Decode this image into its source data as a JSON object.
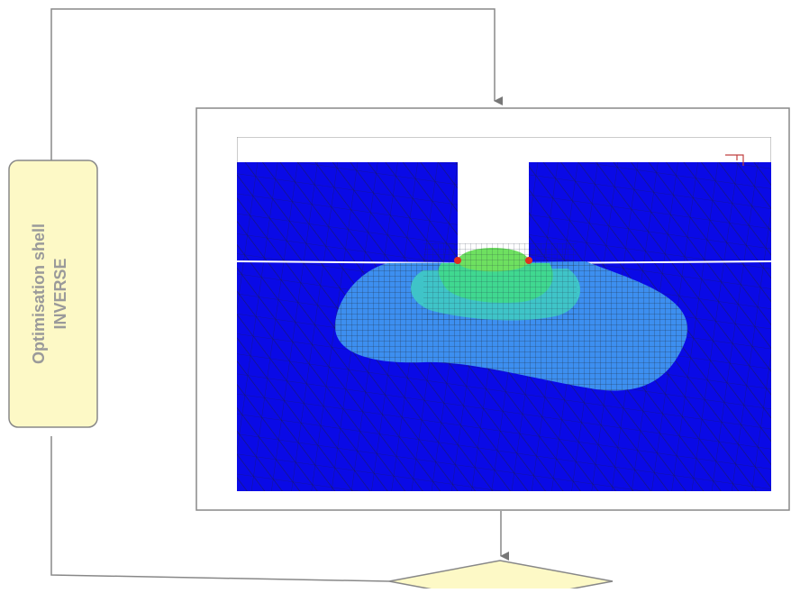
{
  "shell": {
    "title": "Optimisation shell",
    "subtitle": "INVERSE"
  }
}
